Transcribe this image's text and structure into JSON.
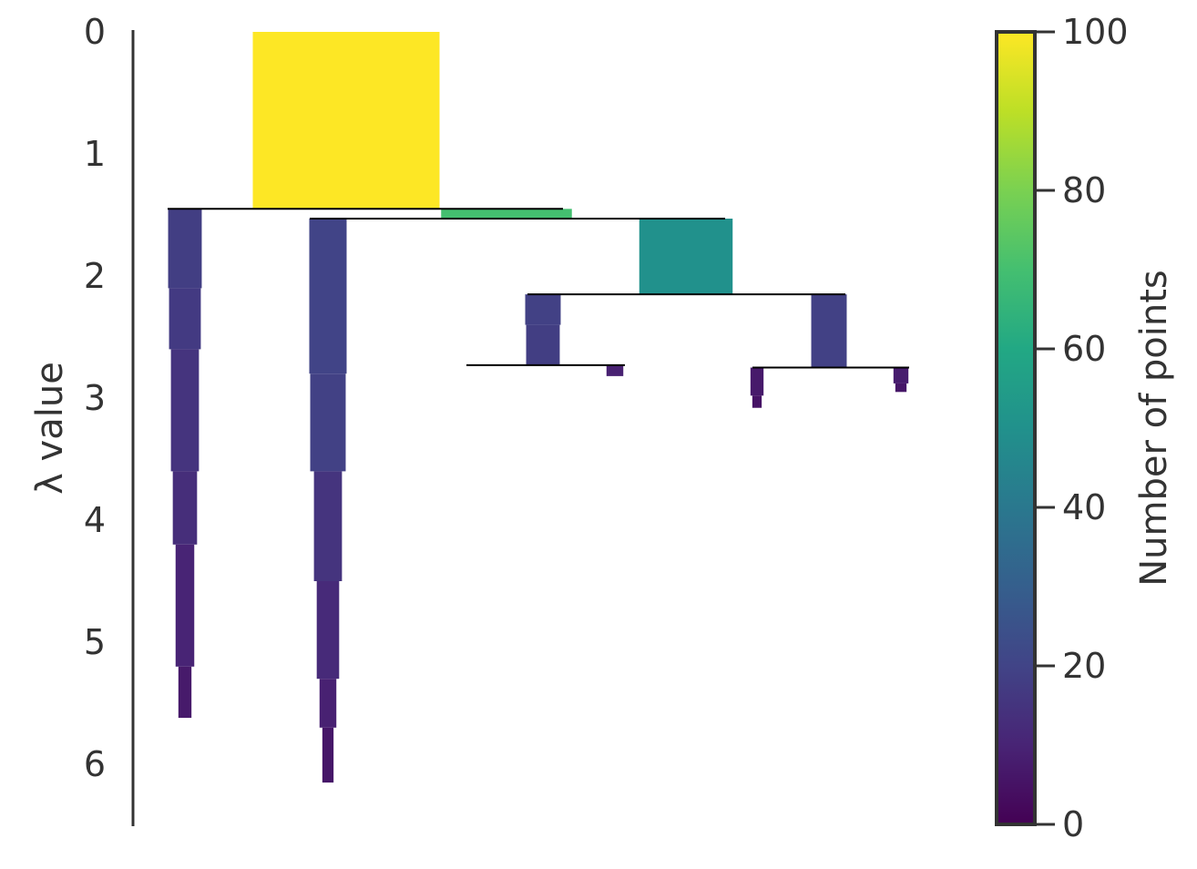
{
  "chart_data": {
    "type": "condensed-tree",
    "ylabel": "λ value",
    "yticks": [
      "0",
      "1",
      "2",
      "3",
      "4",
      "5",
      "6"
    ],
    "ylim": [
      0,
      6.5
    ],
    "colorbar": {
      "label": "Number of points",
      "ticks": [
        "0",
        "20",
        "40",
        "60",
        "80",
        "100"
      ],
      "range": [
        0,
        100
      ],
      "colormap": "viridis"
    },
    "clusters": [
      {
        "id": "root",
        "lambda_birth": 0.0,
        "lambda_death": 1.45,
        "size": 100,
        "segments": [
          {
            "lambda_end": 1.45,
            "size": 100
          }
        ]
      },
      {
        "id": "A",
        "parent": "root",
        "lambda_birth": 1.45,
        "lambda_death": 5.62,
        "size": 18,
        "segments": [
          {
            "lambda_end": 2.1,
            "size": 18
          },
          {
            "lambda_end": 2.6,
            "size": 17
          },
          {
            "lambda_end": 3.6,
            "size": 15
          },
          {
            "lambda_end": 4.2,
            "size": 13
          },
          {
            "lambda_end": 5.2,
            "size": 10
          },
          {
            "lambda_end": 5.62,
            "size": 7
          }
        ]
      },
      {
        "id": "B",
        "parent": "root",
        "lambda_birth": 1.45,
        "lambda_death": 1.53,
        "size": 70,
        "segments": [
          {
            "lambda_end": 1.53,
            "size": 70
          }
        ]
      },
      {
        "id": "B1",
        "parent": "B",
        "lambda_birth": 1.53,
        "lambda_death": 6.15,
        "size": 20,
        "segments": [
          {
            "lambda_end": 2.8,
            "size": 20
          },
          {
            "lambda_end": 3.6,
            "size": 19
          },
          {
            "lambda_end": 4.5,
            "size": 15
          },
          {
            "lambda_end": 5.3,
            "size": 12
          },
          {
            "lambda_end": 5.7,
            "size": 9
          },
          {
            "lambda_end": 6.15,
            "size": 6
          }
        ]
      },
      {
        "id": "B2",
        "parent": "B",
        "lambda_birth": 1.53,
        "lambda_death": 2.15,
        "size": 50,
        "segments": [
          {
            "lambda_end": 2.15,
            "size": 50
          }
        ]
      },
      {
        "id": "C1",
        "parent": "B2",
        "lambda_birth": 2.15,
        "lambda_death": 2.73,
        "size": 19,
        "segments": [
          {
            "lambda_end": 2.4,
            "size": 19
          },
          {
            "lambda_end": 2.73,
            "size": 18
          }
        ]
      },
      {
        "id": "C2",
        "parent": "B2",
        "lambda_birth": 2.15,
        "lambda_death": 2.75,
        "size": 19,
        "segments": [
          {
            "lambda_end": 2.75,
            "size": 19
          }
        ]
      },
      {
        "id": "D1",
        "parent": "C1",
        "lambda_birth": 2.73,
        "lambda_death": 2.73,
        "size": 9,
        "segments": []
      },
      {
        "id": "D2",
        "parent": "C1",
        "lambda_birth": 2.73,
        "lambda_death": 2.82,
        "size": 9,
        "segments": [
          {
            "lambda_end": 2.82,
            "size": 9
          }
        ]
      },
      {
        "id": "E1",
        "parent": "C2",
        "lambda_birth": 2.75,
        "lambda_death": 3.08,
        "size": 7,
        "segments": [
          {
            "lambda_end": 2.98,
            "size": 7
          },
          {
            "lambda_end": 3.08,
            "size": 5
          }
        ]
      },
      {
        "id": "E2",
        "parent": "C2",
        "lambda_birth": 2.75,
        "lambda_death": 2.95,
        "size": 8,
        "segments": [
          {
            "lambda_end": 2.88,
            "size": 8
          },
          {
            "lambda_end": 2.95,
            "size": 6
          }
        ]
      }
    ],
    "splits": [
      {
        "parent": "root",
        "lambda": 1.45,
        "children": [
          "A",
          "B"
        ]
      },
      {
        "parent": "B",
        "lambda": 1.53,
        "children": [
          "B1",
          "B2"
        ]
      },
      {
        "parent": "B2",
        "lambda": 2.15,
        "children": [
          "C1",
          "C2"
        ]
      },
      {
        "parent": "C1",
        "lambda": 2.73,
        "children": [
          "D1",
          "D2"
        ]
      },
      {
        "parent": "C2",
        "lambda": 2.75,
        "children": [
          "E1",
          "E2"
        ]
      }
    ]
  }
}
